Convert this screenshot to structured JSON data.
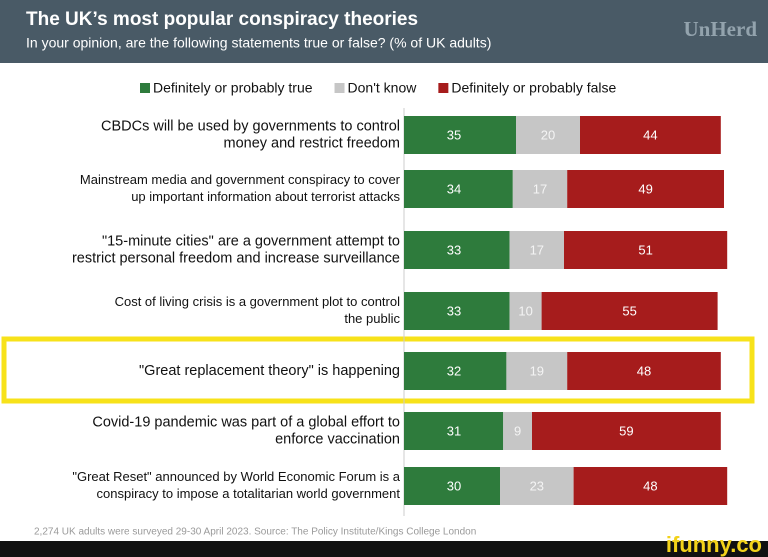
{
  "chart_data": {
    "type": "stacked-barh",
    "title": "The UK’s most popular conspiracy theories",
    "subtitle": "In your opinion, are the following statements true or false? (% of UK adults)",
    "brand": "UnHerd",
    "source": "2,274 UK adults were surveyed 29-30 April 2023. Source: The Policy Institute/Kings College London",
    "watermark": "ifunny.co",
    "legend": "top",
    "xlim": [
      0,
      100
    ],
    "categories": [
      [
        "CBDCs will be used by governments to control",
        "money and restrict freedom"
      ],
      [
        "Mainstream media and government conspiracy to cover",
        "up important information about terrorist attacks"
      ],
      [
        "\"15-minute cities\" are a government attempt to",
        "restrict personal freedom and increase surveillance"
      ],
      [
        "Cost of living crisis is a government plot to control",
        "the public"
      ],
      [
        "\"Great replacement theory\" is happening"
      ],
      [
        "Covid-19 pandemic was part of a global effort to",
        "enforce vaccination"
      ],
      [
        "\"Great Reset\" announced by World Economic Forum is a",
        "conspiracy to impose a totalitarian world government"
      ]
    ],
    "series": [
      {
        "name": "Definitely or probably true",
        "color": "#2e7b3c",
        "values": [
          35,
          34,
          33,
          33,
          32,
          31,
          30
        ]
      },
      {
        "name": "Don't know",
        "color": "#c6c6c6",
        "values": [
          20,
          17,
          17,
          10,
          19,
          9,
          23
        ]
      },
      {
        "name": "Definitely or probably false",
        "color": "#a61c1c",
        "values": [
          44,
          49,
          51,
          55,
          48,
          59,
          48
        ]
      }
    ]
  }
}
